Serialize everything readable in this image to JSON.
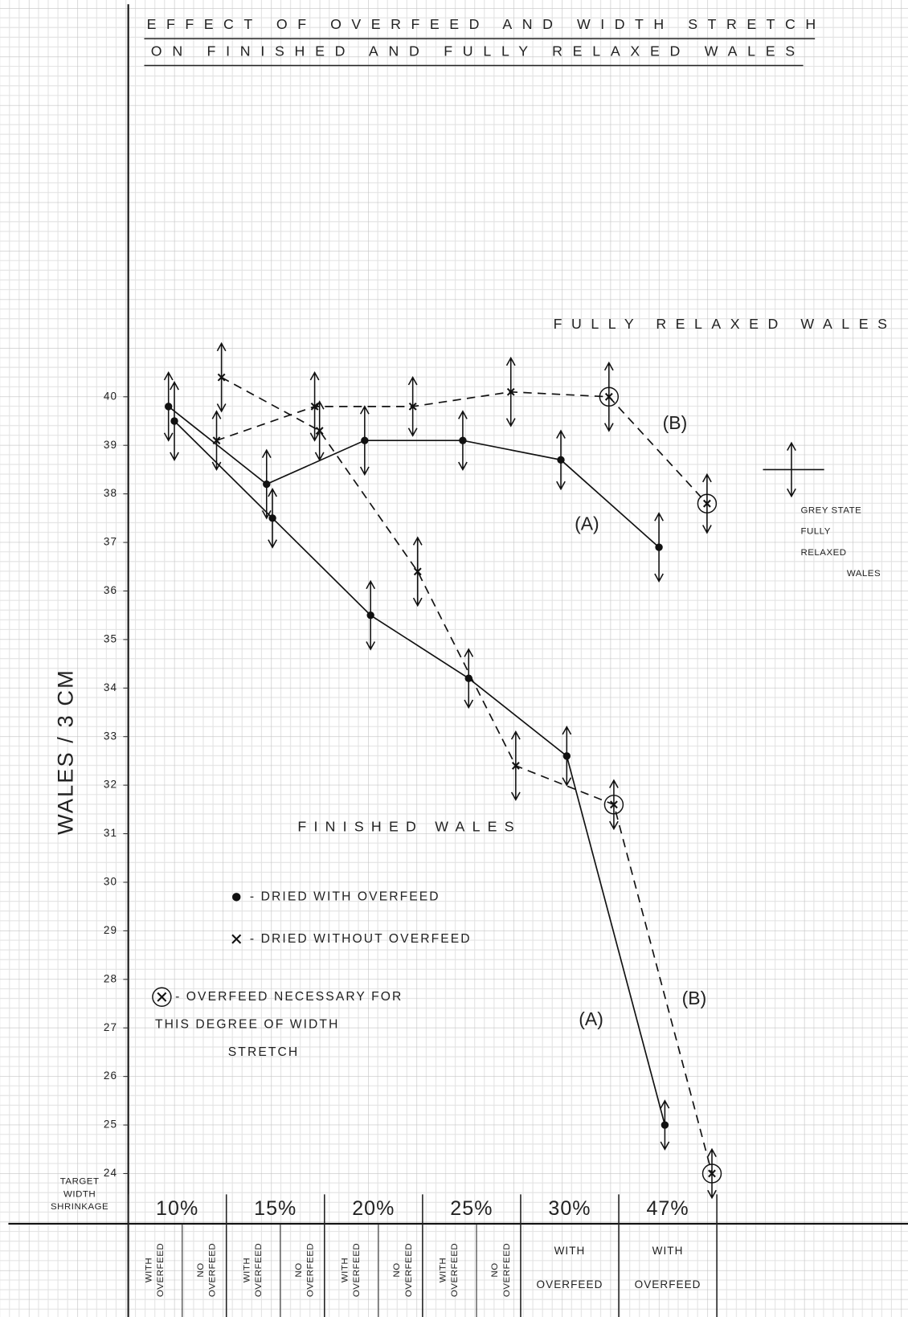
{
  "chart_data": {
    "type": "line",
    "title": [
      "EFFECT OF OVERFEED AND WIDTH STRETCH",
      "ON FINISHED AND FULLY RELAXED WALES"
    ],
    "ylabel": "WALES / 3 CM",
    "xlabel": [
      "TARGET",
      "WIDTH",
      "SHRINKAGE"
    ],
    "categories": [
      "10%",
      "15%",
      "20%",
      "25%",
      "30%",
      "47%"
    ],
    "x_sublabels": [
      [
        [
          "WITH",
          "OVERFEED"
        ],
        [
          "NO",
          "OVERFEED"
        ]
      ],
      [
        [
          "WITH",
          "OVERFEED"
        ],
        [
          "NO",
          "OVERFEED"
        ]
      ],
      [
        [
          "WITH",
          "OVERFEED"
        ],
        [
          "NO",
          "OVERFEED"
        ]
      ],
      [
        [
          "WITH",
          "OVERFEED"
        ],
        [
          "NO",
          "OVERFEED"
        ]
      ],
      [
        [
          "WITH",
          "OVERFEED"
        ]
      ],
      [
        [
          "WITH",
          "OVERFEED"
        ]
      ]
    ],
    "ylim": [
      23,
      48
    ],
    "yticks": [
      24,
      25,
      26,
      27,
      28,
      29,
      30,
      31,
      32,
      33,
      34,
      35,
      36,
      37,
      38,
      39,
      40
    ],
    "grid": true,
    "series": [
      {
        "name": "(A)",
        "color": "#111",
        "line_style": "solid",
        "marker": "dot",
        "values": [
          39.8,
          38.2,
          39.1,
          39.1,
          38.7,
          36.9
        ],
        "errors": [
          0.7,
          0.7,
          0.7,
          0.6,
          0.6,
          0.7
        ],
        "circled": [
          false,
          false,
          false,
          false,
          false,
          false
        ]
      },
      {
        "name": "(B)",
        "color": "#111",
        "line_style": "dashed",
        "marker": "x",
        "values": [
          39.1,
          39.8,
          39.8,
          40.1,
          40.0,
          37.8
        ],
        "errors": [
          0.6,
          0.7,
          0.6,
          0.7,
          0.7,
          0.6
        ],
        "circled": [
          false,
          false,
          false,
          false,
          true,
          true
        ]
      },
      {
        "name": "(A)",
        "color": "#111",
        "line_style": "solid",
        "marker": "dot",
        "values": [
          39.5,
          37.5,
          35.5,
          34.2,
          32.6,
          25.0
        ],
        "errors": [
          0.8,
          0.6,
          0.7,
          0.6,
          0.6,
          0.5
        ],
        "circled": [
          false,
          false,
          false,
          false,
          false,
          false
        ]
      },
      {
        "name": "(B)",
        "color": "#111",
        "line_style": "dashed",
        "marker": "x",
        "values": [
          40.4,
          39.3,
          36.4,
          32.4,
          31.6,
          24.0
        ],
        "errors": [
          0.7,
          0.6,
          0.7,
          0.7,
          0.5,
          0.5
        ],
        "circled": [
          false,
          false,
          false,
          false,
          true,
          true
        ]
      }
    ],
    "annotations": [
      {
        "text": "FULLY RELAXED WALES"
      },
      {
        "text": "FINISHED WALES"
      }
    ],
    "grey_state": {
      "label": [
        "GREY STATE",
        "FULLY",
        "RELAXED",
        "WALES"
      ],
      "value": 38.5,
      "error": 0.55
    },
    "legend": [
      {
        "marker": "dot",
        "lines": [
          "- DRIED WITH OVERFEED"
        ]
      },
      {
        "marker": "x",
        "lines": [
          "- DRIED WITHOUT OVERFEED"
        ]
      },
      {
        "marker": "circled-x",
        "lines": [
          "- OVERFEED NECESSARY FOR",
          "THIS DEGREE OF WIDTH",
          "STRETCH"
        ]
      }
    ]
  }
}
